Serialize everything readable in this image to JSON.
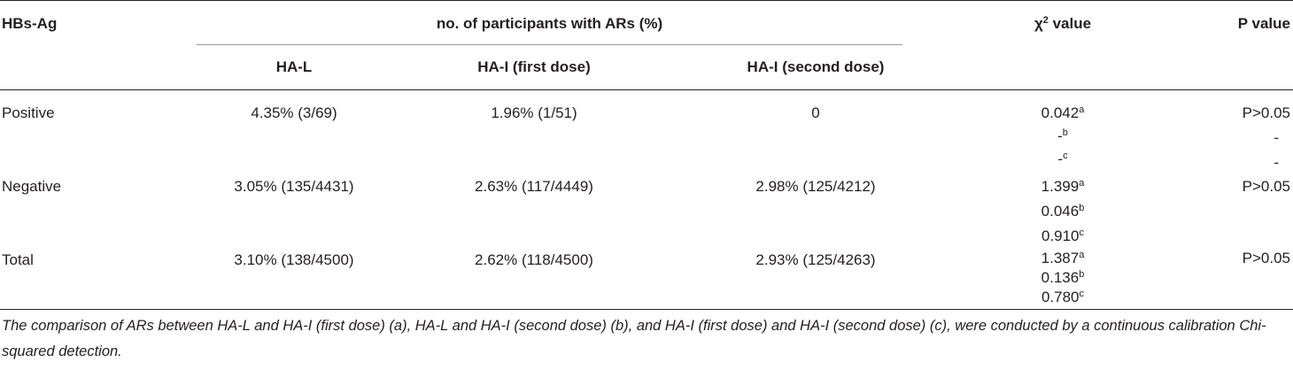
{
  "header": {
    "col_hbsag": "HBs-Ag",
    "group_label": "no. of participants with ARs (%)",
    "col_hal": "HA-L",
    "col_hai_first": "HA-I (first dose)",
    "col_hai_second": "HA-I (second dose)",
    "col_chi_prefix": "χ",
    "col_chi_sup": "2",
    "col_chi_suffix": " value",
    "col_p": "P value"
  },
  "rows": [
    {
      "label": "Positive",
      "hal": "4.35% (3/69)",
      "hai_first": "1.96% (1/51)",
      "hai_second": "0",
      "chi": [
        {
          "value": "0.042",
          "mark": "a"
        },
        {
          "value": "-",
          "mark": "b"
        },
        {
          "value": "-",
          "mark": "c"
        }
      ],
      "p": [
        "P>0.05",
        "-",
        "-"
      ]
    },
    {
      "label": "Negative",
      "hal": "3.05% (135/4431)",
      "hai_first": "2.63% (117/4449)",
      "hai_second": "2.98% (125/4212)",
      "chi": [
        {
          "value": "1.399",
          "mark": "a"
        },
        {
          "value": "0.046",
          "mark": "b"
        },
        {
          "value": "0.910",
          "mark": "c"
        }
      ],
      "p": [
        "P>0.05"
      ]
    },
    {
      "label": "Total",
      "hal": "3.10% (138/4500)",
      "hai_first": "2.62% (118/4500)",
      "hai_second": "2.93% (125/4263)",
      "chi": [
        {
          "value": "1.387",
          "mark": "a"
        },
        {
          "value": "0.136",
          "mark": "b"
        },
        {
          "value": "0.780",
          "mark": "c"
        }
      ],
      "p": [
        "P>0.05"
      ]
    }
  ],
  "footnote": "The comparison of ARs between HA-L and HA-I (first dose) (a), HA-L and HA-I (second dose) (b), and HA-I (first dose) and HA-I (second dose) (c), were conducted by a continuous calibration Chi-squared detection."
}
